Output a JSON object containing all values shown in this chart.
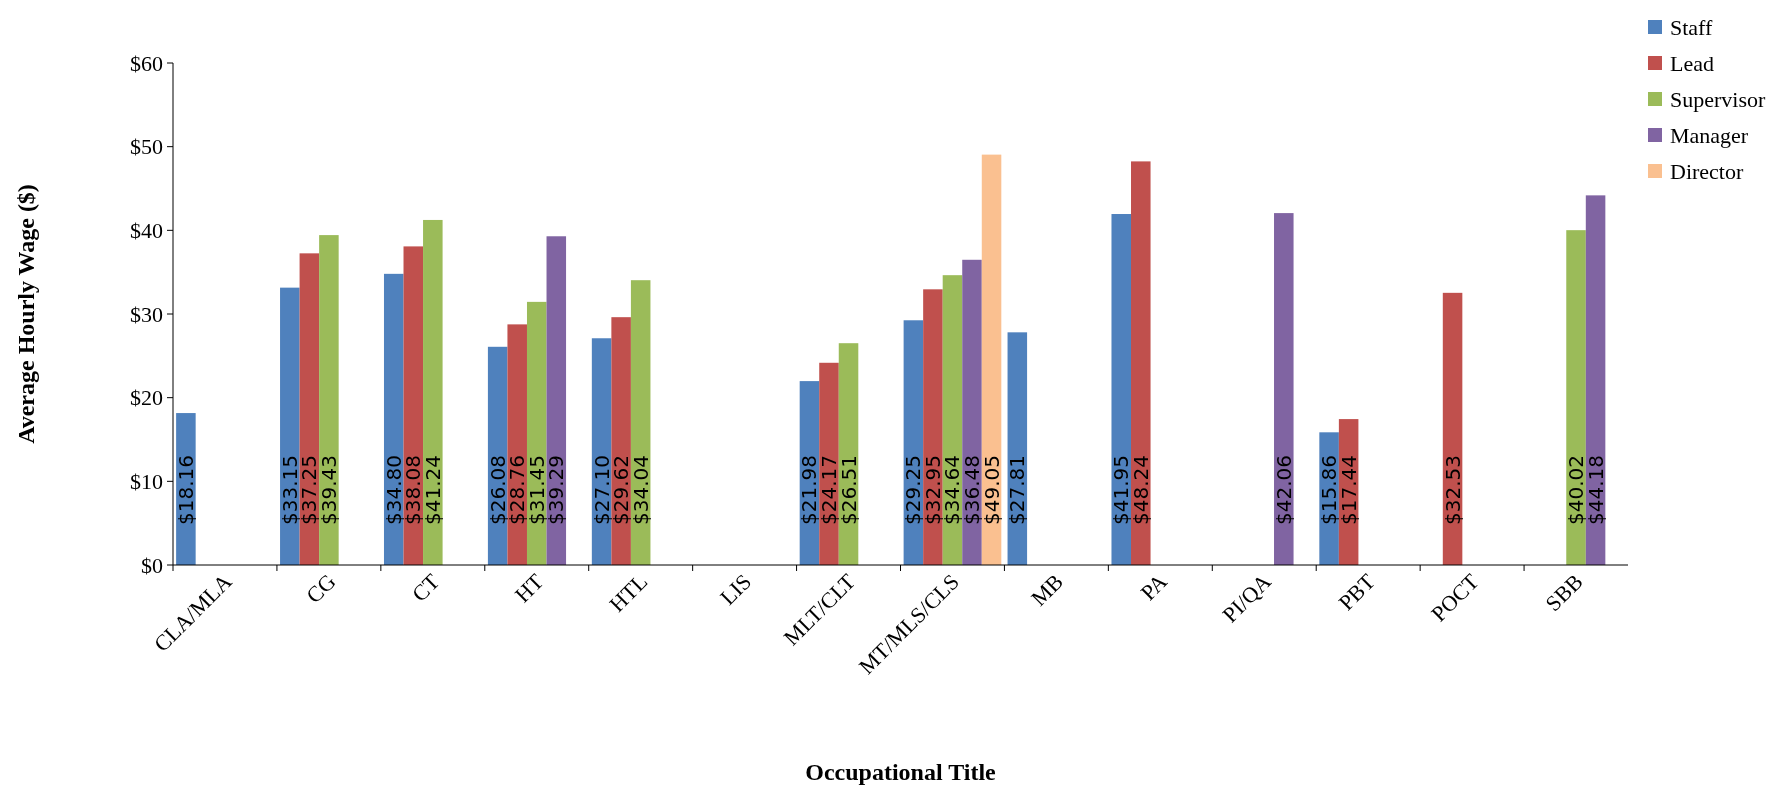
{
  "chart_data": {
    "type": "bar",
    "xlabel": "Occupational Title",
    "ylabel": "Average Hourly Wage ($)",
    "categories": [
      "CLA/MLA",
      "CG",
      "CT",
      "HT",
      "HTL",
      "LIS",
      "MLT/CLT",
      "MT/MLS/CLS",
      "MB",
      "PA",
      "PI/QA",
      "PBT",
      "POCT",
      "SBB"
    ],
    "series": [
      {
        "name": "Staff",
        "color": "#4f81bd",
        "values": [
          18.16,
          33.15,
          34.8,
          26.08,
          27.1,
          null,
          21.98,
          29.25,
          27.81,
          41.95,
          null,
          15.86,
          null,
          null
        ],
        "value_labels": [
          "$18.16",
          "$33.15",
          "$34.80",
          "$26.08",
          "$27.10",
          null,
          "$21.98",
          "$29.25",
          "$27.81",
          "$41.95",
          null,
          "$15.86",
          null,
          null
        ]
      },
      {
        "name": "Lead",
        "color": "#c0504d",
        "values": [
          null,
          37.25,
          38.08,
          28.76,
          29.62,
          null,
          24.17,
          32.95,
          null,
          48.24,
          null,
          17.44,
          32.53,
          null
        ],
        "value_labels": [
          null,
          "$37.25",
          "$38.08",
          "$28.76",
          "$29.62",
          null,
          "$24.17",
          "$32.95",
          null,
          "$48.24",
          null,
          "$17.44",
          "$32.53",
          null
        ]
      },
      {
        "name": "Supervisor",
        "color": "#9bbb59",
        "values": [
          null,
          39.43,
          41.24,
          31.45,
          34.04,
          null,
          26.51,
          34.64,
          null,
          null,
          null,
          null,
          null,
          40.02
        ],
        "value_labels": [
          null,
          "$39.43",
          "$41.24",
          "$31.45",
          "$34.04",
          null,
          "$26.51",
          "$34.64",
          null,
          null,
          null,
          null,
          null,
          "$40.02"
        ]
      },
      {
        "name": "Manager",
        "color": "#8064a2",
        "values": [
          null,
          null,
          null,
          39.29,
          null,
          null,
          null,
          36.48,
          null,
          null,
          42.06,
          null,
          null,
          44.18
        ],
        "value_labels": [
          null,
          null,
          null,
          "$39.29",
          null,
          null,
          null,
          "$36.48",
          null,
          null,
          "$42.06",
          null,
          null,
          "$44.18"
        ]
      },
      {
        "name": "Director",
        "color": "#fac090",
        "values": [
          null,
          null,
          null,
          null,
          null,
          null,
          null,
          49.05,
          null,
          null,
          null,
          null,
          null,
          null
        ],
        "value_labels": [
          null,
          null,
          null,
          null,
          null,
          null,
          null,
          "$49.05",
          null,
          null,
          null,
          null,
          null,
          null
        ]
      }
    ],
    "ylim": [
      0,
      60
    ],
    "yticks": [
      {
        "value": 0,
        "label": "$0"
      },
      {
        "value": 10,
        "label": "$10"
      },
      {
        "value": 20,
        "label": "$20"
      },
      {
        "value": 30,
        "label": "$30"
      },
      {
        "value": 40,
        "label": "$40"
      },
      {
        "value": 50,
        "label": "$50"
      },
      {
        "value": 60,
        "label": "$60"
      }
    ],
    "legend": "top right",
    "grid": false
  }
}
